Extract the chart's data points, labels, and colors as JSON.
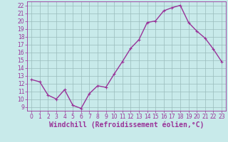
{
  "x": [
    0,
    1,
    2,
    3,
    4,
    5,
    6,
    7,
    8,
    9,
    10,
    11,
    12,
    13,
    14,
    15,
    16,
    17,
    18,
    19,
    20,
    21,
    22,
    23
  ],
  "y": [
    12.5,
    12.2,
    10.5,
    10.0,
    11.2,
    9.2,
    8.8,
    10.7,
    11.7,
    11.5,
    13.2,
    14.8,
    16.5,
    17.6,
    19.8,
    20.0,
    21.3,
    21.7,
    22.0,
    19.8,
    18.7,
    17.8,
    16.4,
    14.8
  ],
  "line_color": "#993399",
  "marker_color": "#993399",
  "bg_color": "#c8eaea",
  "grid_color": "#99bbbb",
  "xlabel": "Windchill (Refroidissement éolien,°C)",
  "xlim": [
    -0.5,
    23.5
  ],
  "ylim": [
    8.5,
    22.5
  ],
  "yticks": [
    9,
    10,
    11,
    12,
    13,
    14,
    15,
    16,
    17,
    18,
    19,
    20,
    21,
    22
  ],
  "xticks": [
    0,
    1,
    2,
    3,
    4,
    5,
    6,
    7,
    8,
    9,
    10,
    11,
    12,
    13,
    14,
    15,
    16,
    17,
    18,
    19,
    20,
    21,
    22,
    23
  ],
  "tick_fontsize": 5.5,
  "xlabel_fontsize": 7.0,
  "line_width": 1.0,
  "marker_size": 2.5
}
